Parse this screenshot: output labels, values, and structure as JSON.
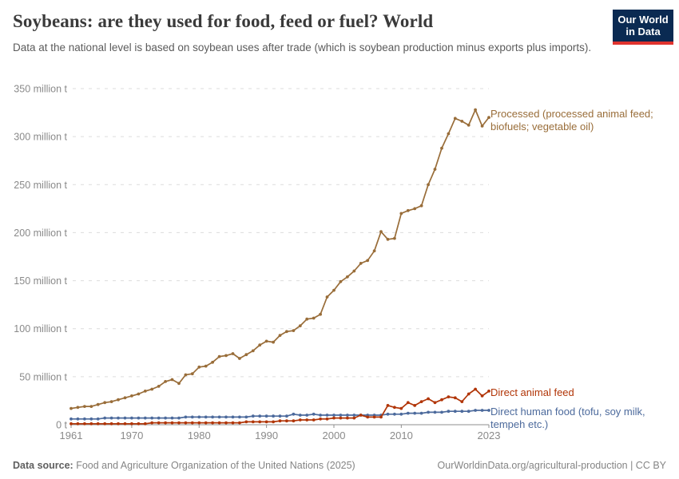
{
  "header": {
    "title": "Soybeans: are they used for food, feed or fuel? World",
    "subtitle": "Data at the national level is based on soybean uses after trade (which is soybean production minus exports plus imports).",
    "logo": {
      "line1": "Our World",
      "line2": "in Data"
    }
  },
  "annotations": {
    "processed_line1": "Processed (processed animal feed;",
    "processed_line2": "biofuels; vegetable oil)",
    "animal_feed": "Direct animal feed",
    "human_food_line1": "Direct human food (tofu, soy milk,",
    "human_food_line2": "tempeh etc.)"
  },
  "footer": {
    "source_label": "Data source:",
    "source_text": " Food and Agriculture Organization of the United Nations (2025)",
    "credit": "OurWorldinData.org/agricultural-production | CC BY"
  },
  "colors": {
    "processed": "#996d39",
    "animal_feed": "#b13507",
    "human_food": "#4c6a9c",
    "grid": "#dcdcdc",
    "axis": "#8f8f8f",
    "tick_text": "#8a8a8a",
    "logo_bg": "#0a2a52",
    "logo_bar": "#e0332e"
  },
  "chart_data": {
    "type": "line",
    "title": "Soybeans: are they used for food, feed or fuel? World",
    "unit": "million t",
    "grid": "horizontal dashed",
    "legend_position": "end-of-line labels",
    "ylim": [
      0,
      350
    ],
    "y_ticks": [
      0,
      50,
      100,
      150,
      200,
      250,
      300,
      350
    ],
    "y_tick_labels": [
      "0 t",
      "50 million t",
      "100 million t",
      "150 million t",
      "200 million t",
      "250 million t",
      "300 million t",
      "350 million t"
    ],
    "x_ticks": [
      1961,
      1970,
      1980,
      1990,
      2000,
      2010,
      2023
    ],
    "x_tick_labels": [
      "1961",
      "1970",
      "1980",
      "1990",
      "2000",
      "2010",
      "2023"
    ],
    "x": [
      1961,
      1962,
      1963,
      1964,
      1965,
      1966,
      1967,
      1968,
      1969,
      1970,
      1971,
      1972,
      1973,
      1974,
      1975,
      1976,
      1977,
      1978,
      1979,
      1980,
      1981,
      1982,
      1983,
      1984,
      1985,
      1986,
      1987,
      1988,
      1989,
      1990,
      1991,
      1992,
      1993,
      1994,
      1995,
      1996,
      1997,
      1998,
      1999,
      2000,
      2001,
      2002,
      2003,
      2004,
      2005,
      2006,
      2007,
      2008,
      2009,
      2010,
      2011,
      2012,
      2013,
      2014,
      2015,
      2016,
      2017,
      2018,
      2019,
      2020,
      2021,
      2022,
      2023
    ],
    "series": [
      {
        "name": "Processed (processed animal feed; biofuels; vegetable oil)",
        "color": "#996d39",
        "values": [
          17,
          18,
          19,
          19,
          21,
          23,
          24,
          26,
          28,
          30,
          32,
          35,
          37,
          40,
          45,
          47,
          43,
          52,
          53,
          60,
          61,
          65,
          71,
          72,
          74,
          69,
          73,
          77,
          83,
          87,
          86,
          93,
          97,
          98,
          103,
          110,
          111,
          115,
          133,
          140,
          149,
          154,
          160,
          168,
          171,
          181,
          201,
          193,
          194,
          220,
          223,
          225,
          228,
          250,
          266,
          288,
          303,
          319,
          316,
          312,
          328,
          311,
          320
        ]
      },
      {
        "name": "Direct animal feed",
        "color": "#b13507",
        "values": [
          1,
          1,
          1,
          1,
          1,
          1,
          1,
          1,
          1,
          1,
          1,
          1,
          2,
          2,
          2,
          2,
          2,
          2,
          2,
          2,
          2,
          2,
          2,
          2,
          2,
          2,
          3,
          3,
          3,
          3,
          3,
          4,
          4,
          4,
          5,
          5,
          5,
          6,
          6,
          7,
          7,
          7,
          7,
          10,
          8,
          8,
          8,
          20,
          18,
          17,
          23,
          20,
          24,
          27,
          23,
          26,
          29,
          28,
          24,
          32,
          37,
          30,
          35
        ]
      },
      {
        "name": "Direct human food (tofu, soy milk, tempeh etc.)",
        "color": "#4c6a9c",
        "values": [
          6,
          6,
          6,
          6,
          6,
          7,
          7,
          7,
          7,
          7,
          7,
          7,
          7,
          7,
          7,
          7,
          7,
          8,
          8,
          8,
          8,
          8,
          8,
          8,
          8,
          8,
          8,
          9,
          9,
          9,
          9,
          9,
          9,
          11,
          10,
          10,
          11,
          10,
          10,
          10,
          10,
          10,
          10,
          10,
          10,
          10,
          10,
          11,
          11,
          11,
          12,
          12,
          12,
          13,
          13,
          13,
          14,
          14,
          14,
          14,
          15,
          15,
          15
        ]
      }
    ]
  }
}
